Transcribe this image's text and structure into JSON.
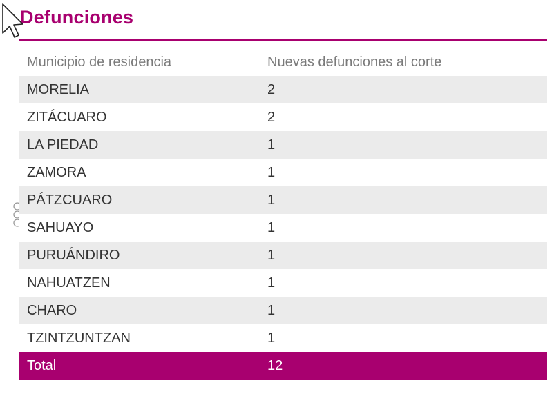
{
  "title": "Defunciones",
  "colors": {
    "accent": "#a8006f",
    "row_shaded": "#ebebeb",
    "header_text": "#7a7a7a"
  },
  "table": {
    "headers": [
      "Municipio de residencia",
      "Nuevas defunciones al corte"
    ],
    "rows": [
      {
        "municipio": "MORELIA",
        "defunciones": "2"
      },
      {
        "municipio": "ZITÁCUARO",
        "defunciones": "2"
      },
      {
        "municipio": "LA PIEDAD",
        "defunciones": "1"
      },
      {
        "municipio": "ZAMORA",
        "defunciones": "1"
      },
      {
        "municipio": "PÁTZCUARO",
        "defunciones": "1"
      },
      {
        "municipio": "SAHUAYO",
        "defunciones": "1"
      },
      {
        "municipio": "PURUÁNDIRO",
        "defunciones": "1"
      },
      {
        "municipio": "NAHUATZEN",
        "defunciones": "1"
      },
      {
        "municipio": "CHARO",
        "defunciones": "1"
      },
      {
        "municipio": "TZINTZUNTZAN",
        "defunciones": "1"
      }
    ],
    "total": {
      "label": "Total",
      "value": "12"
    }
  },
  "icons": {
    "cursor": "mouse-pointer-icon",
    "handle": "drag-handle-icon"
  }
}
